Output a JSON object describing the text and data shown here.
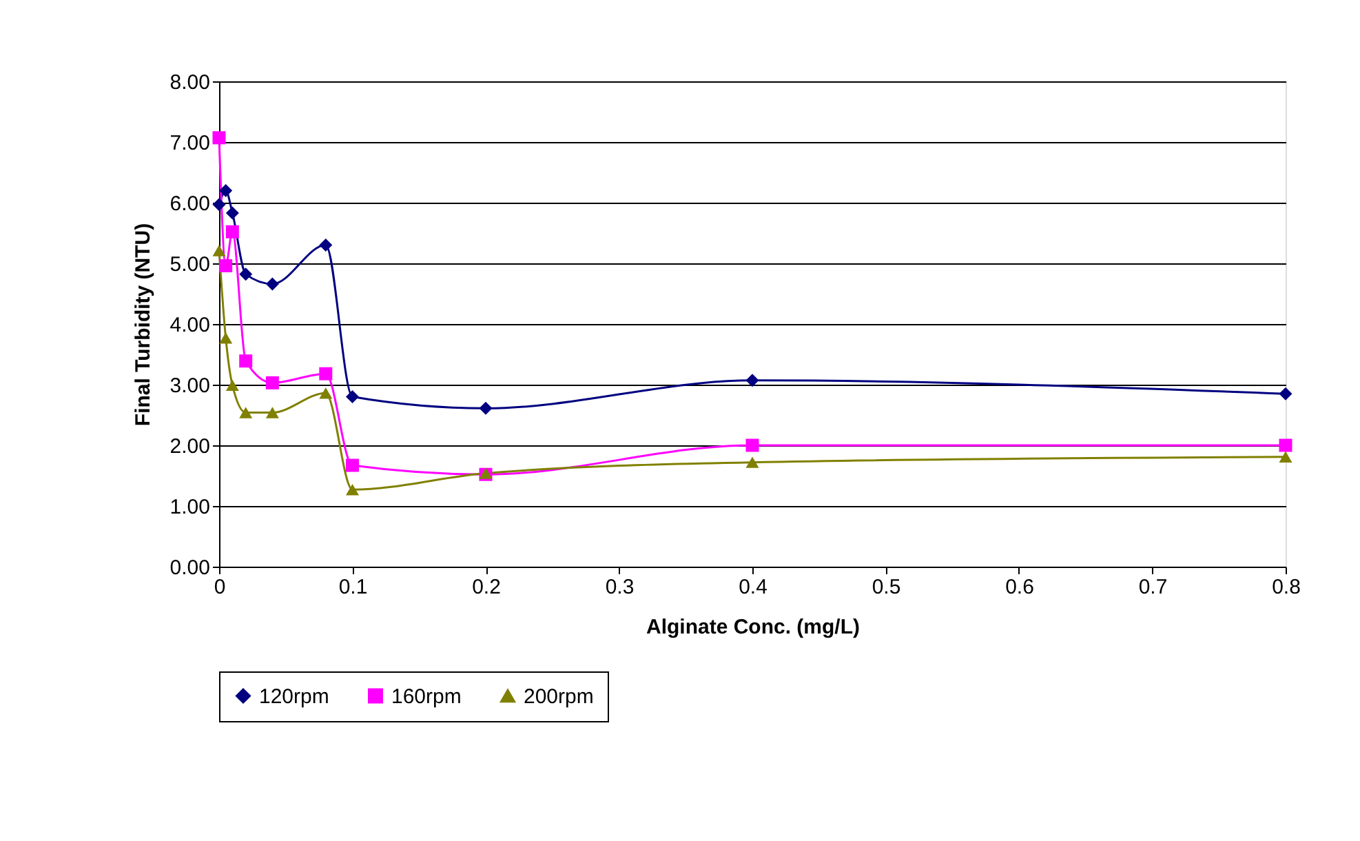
{
  "chart_data": {
    "type": "line",
    "xlabel": "Alginate Conc. (mg/L)",
    "ylabel": "Final Turbidity (NTU)",
    "x": [
      0,
      0.005,
      0.01,
      0.02,
      0.04,
      0.08,
      0.1,
      0.2,
      0.4,
      0.8
    ],
    "series": [
      {
        "name": "120rpm",
        "color": "#000080",
        "marker": "diamond",
        "values": [
          5.97,
          6.2,
          5.83,
          4.82,
          4.66,
          5.3,
          2.8,
          2.61,
          3.07,
          2.85
        ]
      },
      {
        "name": "160rpm",
        "color": "#ff00ff",
        "marker": "square",
        "values": [
          7.07,
          4.96,
          5.52,
          3.39,
          3.03,
          3.18,
          1.67,
          1.52,
          2.0,
          2.0
        ]
      },
      {
        "name": "200rpm",
        "color": "#808000",
        "marker": "triangle",
        "values": [
          5.21,
          3.77,
          2.99,
          2.54,
          2.54,
          2.86,
          1.27,
          1.54,
          1.72,
          1.81
        ]
      }
    ],
    "xlim": [
      0,
      0.8
    ],
    "xticks": [
      0,
      0.1,
      0.2,
      0.3,
      0.4,
      0.5,
      0.6,
      0.7,
      0.8
    ],
    "ylim": [
      0,
      8
    ],
    "yticks": [
      {
        "value": 0,
        "label": "0.00"
      },
      {
        "value": 1,
        "label": "1.00"
      },
      {
        "value": 2,
        "label": "2.00"
      },
      {
        "value": 3,
        "label": "3.00"
      },
      {
        "value": 4,
        "label": "4.00"
      },
      {
        "value": 5,
        "label": "5.00"
      },
      {
        "value": 6,
        "label": "6.00"
      },
      {
        "value": 7,
        "label": "7.00"
      },
      {
        "value": 8,
        "label": "8.00"
      }
    ],
    "grid": "y",
    "legend": "bottom",
    "line_style": "solid"
  }
}
